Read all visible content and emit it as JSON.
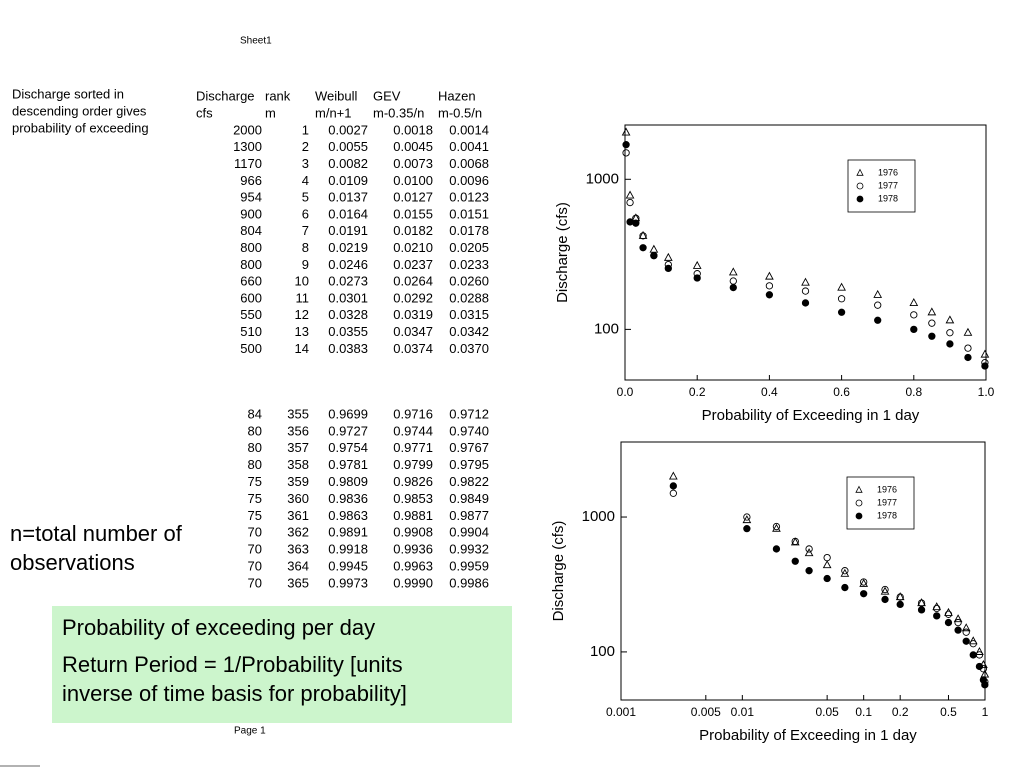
{
  "header": {
    "title": "Sheet1"
  },
  "footer": {
    "page": "Page 1"
  },
  "note_left": {
    "lines": [
      "Discharge sorted in",
      "descending order gives",
      "probability of exceeding"
    ]
  },
  "note_n": {
    "lines": [
      "n=total number of",
      "observations"
    ]
  },
  "table": {
    "headers": [
      [
        "Discharge",
        "cfs"
      ],
      [
        "rank",
        "m"
      ],
      [
        "Weibull",
        "m/n+1"
      ],
      [
        "GEV",
        "m-0.35/n"
      ],
      [
        "Hazen",
        "m-0.5/n"
      ]
    ],
    "rows_top": [
      [
        "2000",
        "1",
        "0.0027",
        "0.0018",
        "0.0014"
      ],
      [
        "1300",
        "2",
        "0.0055",
        "0.0045",
        "0.0041"
      ],
      [
        "1170",
        "3",
        "0.0082",
        "0.0073",
        "0.0068"
      ],
      [
        "966",
        "4",
        "0.0109",
        "0.0100",
        "0.0096"
      ],
      [
        "954",
        "5",
        "0.0137",
        "0.0127",
        "0.0123"
      ],
      [
        "900",
        "6",
        "0.0164",
        "0.0155",
        "0.0151"
      ],
      [
        "804",
        "7",
        "0.0191",
        "0.0182",
        "0.0178"
      ],
      [
        "800",
        "8",
        "0.0219",
        "0.0210",
        "0.0205"
      ],
      [
        "800",
        "9",
        "0.0246",
        "0.0237",
        "0.0233"
      ],
      [
        "660",
        "10",
        "0.0273",
        "0.0264",
        "0.0260"
      ],
      [
        "600",
        "11",
        "0.0301",
        "0.0292",
        "0.0288"
      ],
      [
        "550",
        "12",
        "0.0328",
        "0.0319",
        "0.0315"
      ],
      [
        "510",
        "13",
        "0.0355",
        "0.0347",
        "0.0342"
      ],
      [
        "500",
        "14",
        "0.0383",
        "0.0374",
        "0.0370"
      ]
    ],
    "rows_bottom": [
      [
        "84",
        "355",
        "0.9699",
        "0.9716",
        "0.9712"
      ],
      [
        "80",
        "356",
        "0.9727",
        "0.9744",
        "0.9740"
      ],
      [
        "80",
        "357",
        "0.9754",
        "0.9771",
        "0.9767"
      ],
      [
        "80",
        "358",
        "0.9781",
        "0.9799",
        "0.9795"
      ],
      [
        "75",
        "359",
        "0.9809",
        "0.9826",
        "0.9822"
      ],
      [
        "75",
        "360",
        "0.9836",
        "0.9853",
        "0.9849"
      ],
      [
        "75",
        "361",
        "0.9863",
        "0.9881",
        "0.9877"
      ],
      [
        "70",
        "362",
        "0.9891",
        "0.9908",
        "0.9904"
      ],
      [
        "70",
        "363",
        "0.9918",
        "0.9936",
        "0.9932"
      ],
      [
        "70",
        "364",
        "0.9945",
        "0.9963",
        "0.9959"
      ],
      [
        "70",
        "365",
        "0.9973",
        "0.9990",
        "0.9986"
      ]
    ]
  },
  "callout": {
    "paragraphs": [
      [
        "Probability of exceeding per day"
      ],
      [
        "Return Period = 1/Probability [units",
        "inverse of time basis for probability]"
      ]
    ]
  },
  "chart_data": [
    {
      "type": "scatter",
      "xlabel": "Probability of Exceeding in 1 day",
      "ylabel": "Discharge (cfs)",
      "xscale": "linear",
      "yscale": "log",
      "legend": "upper right",
      "xlim": [
        0,
        1
      ],
      "ylim": [
        46,
        2300
      ],
      "xticks": [
        {
          "value": 0,
          "label": "0.0"
        },
        0.2,
        0.4,
        0.6,
        0.8,
        {
          "value": 1,
          "label": "1.0"
        }
      ],
      "yticks": [
        100,
        1000
      ],
      "x": [
        0.003,
        0.014,
        0.03,
        0.05,
        0.08,
        0.12,
        0.2,
        0.3,
        0.4,
        0.5,
        0.6,
        0.7,
        0.8,
        0.85,
        0.9,
        0.95,
        0.997
      ],
      "series": [
        {
          "name": "1976",
          "marker": "triangle-open",
          "color": "#000000",
          "values": [
            2050,
            780,
            550,
            420,
            340,
            300,
            265,
            240,
            225,
            205,
            190,
            170,
            150,
            130,
            115,
            95,
            68
          ]
        },
        {
          "name": "1977",
          "marker": "circle-open",
          "color": "#000000",
          "values": [
            1500,
            700,
            550,
            420,
            310,
            270,
            235,
            210,
            195,
            180,
            160,
            145,
            125,
            110,
            95,
            75,
            60
          ]
        },
        {
          "name": "1978",
          "marker": "circle-filled",
          "color": "#000000",
          "values": [
            1700,
            520,
            510,
            350,
            310,
            255,
            220,
            190,
            170,
            150,
            130,
            115,
            100,
            90,
            80,
            65,
            57
          ]
        }
      ]
    },
    {
      "type": "scatter",
      "xlabel": "Probability of Exceeding in 1 day",
      "ylabel": "Discharge (cfs)",
      "xscale": "log",
      "yscale": "log",
      "legend": "upper right",
      "xlim": [
        0.001,
        1
      ],
      "ylim": [
        44,
        3600
      ],
      "xticks": [
        0.001,
        0.005,
        0.01,
        0.05,
        0.1,
        0.2,
        0.5,
        1
      ],
      "yticks": [
        100,
        1000
      ],
      "x": [
        0.0027,
        0.0109,
        0.0191,
        0.0273,
        0.0355,
        0.05,
        0.07,
        0.1,
        0.15,
        0.2,
        0.3,
        0.4,
        0.5,
        0.6,
        0.7,
        0.8,
        0.9,
        0.97,
        0.997
      ],
      "series": [
        {
          "name": "1976",
          "marker": "triangle-open",
          "color": "#000000",
          "values": [
            2000,
            950,
            820,
            650,
            540,
            440,
            380,
            320,
            280,
            255,
            230,
            215,
            195,
            175,
            150,
            120,
            100,
            80,
            68
          ]
        },
        {
          "name": "1977",
          "marker": "circle-open",
          "color": "#000000",
          "values": [
            1500,
            1000,
            850,
            660,
            580,
            500,
            400,
            330,
            290,
            255,
            230,
            210,
            190,
            165,
            140,
            115,
            95,
            75,
            60
          ]
        },
        {
          "name": "1978",
          "marker": "circle-filled",
          "color": "#000000",
          "values": [
            1700,
            820,
            580,
            470,
            400,
            350,
            300,
            270,
            245,
            225,
            205,
            185,
            165,
            145,
            120,
            95,
            78,
            62,
            57
          ]
        }
      ]
    }
  ]
}
